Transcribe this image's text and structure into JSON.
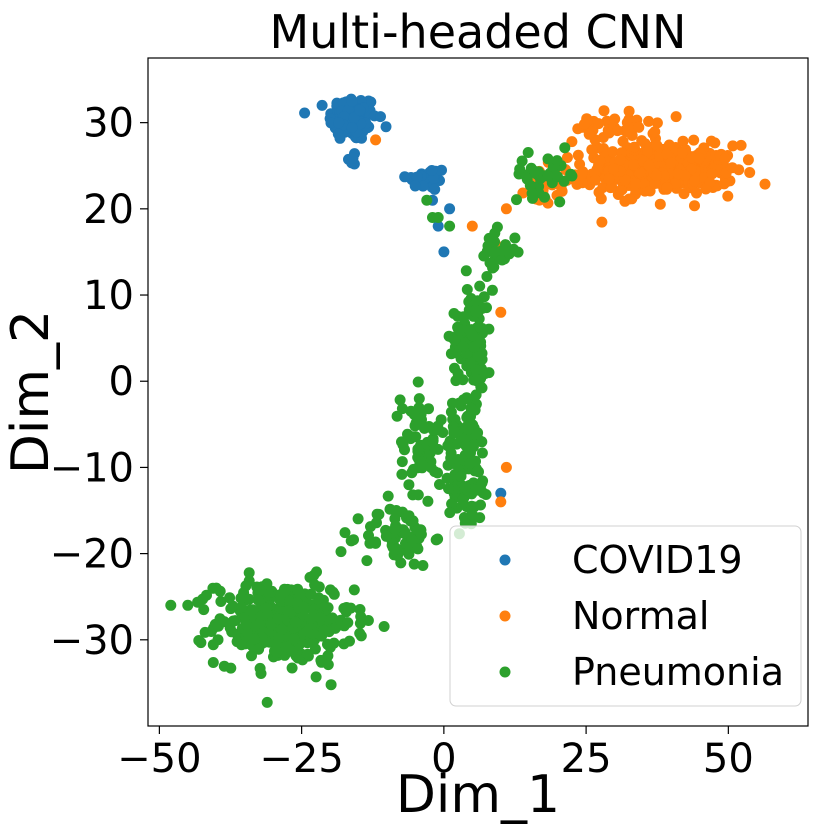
{
  "chart_data": {
    "type": "scatter",
    "title": "Multi-headed CNN",
    "xlabel": "Dim_1",
    "ylabel": "Dim_2",
    "xlim": [
      -52,
      64
    ],
    "ylim": [
      -40,
      37.5
    ],
    "xticks": [
      -50,
      -25,
      0,
      25,
      50
    ],
    "yticks": [
      -30,
      -20,
      -10,
      0,
      10,
      20,
      30
    ],
    "xtick_labels": [
      "−50",
      "−25",
      "0",
      "25",
      "50"
    ],
    "ytick_labels": [
      "−30",
      "−20",
      "−10",
      "0",
      "10",
      "20",
      "30"
    ],
    "legend_position": "bottom-right",
    "series": [
      {
        "name": "COVID19",
        "color": "#1f77b4",
        "clusters": [
          {
            "center": [
              -16,
              30.5
            ],
            "spread": [
              3.5,
              2.2
            ],
            "count": 120
          },
          {
            "center": [
              -3,
              23.5
            ],
            "spread": [
              3.0,
              1.2
            ],
            "count": 28
          },
          {
            "center": [
              -16,
              26
            ],
            "spread": [
              0.8,
              1.0
            ],
            "count": 6
          }
        ],
        "points": [
          [
            -1,
            18
          ],
          [
            0,
            15
          ],
          [
            10,
            -13
          ],
          [
            1,
            20
          ],
          [
            -2,
            21
          ]
        ]
      },
      {
        "name": "Normal",
        "color": "#ff7f0e",
        "clusters": [
          {
            "center": [
              38,
              24.5
            ],
            "spread": [
              11,
              2.4
            ],
            "count": 380
          },
          {
            "center": [
              30,
              29.5
            ],
            "spread": [
              6,
              1.5
            ],
            "count": 40
          },
          {
            "center": [
              18,
              23
            ],
            "spread": [
              3,
              2
            ],
            "count": 30
          }
        ],
        "points": [
          [
            11,
            20
          ],
          [
            9,
            16
          ],
          [
            10,
            8
          ],
          [
            6,
            5
          ],
          [
            10,
            -14
          ],
          [
            11,
            -10
          ],
          [
            -12,
            28
          ],
          [
            5,
            18
          ]
        ]
      },
      {
        "name": "Pneumonia",
        "color": "#2ca02c",
        "clusters": [
          {
            "center": [
              -28,
              -28
            ],
            "spread": [
              10,
              4
            ],
            "count": 330
          },
          {
            "center": [
              -8,
              -18
            ],
            "spread": [
              5,
              3
            ],
            "count": 70
          },
          {
            "center": [
              4,
              -10
            ],
            "spread": [
              3.5,
              6
            ],
            "count": 110
          },
          {
            "center": [
              5,
              5
            ],
            "spread": [
              3,
              6
            ],
            "count": 110
          },
          {
            "center": [
              -4,
              -7
            ],
            "spread": [
              3,
              5
            ],
            "count": 60
          },
          {
            "center": [
              18,
              24
            ],
            "spread": [
              5,
              2
            ],
            "count": 35
          },
          {
            "center": [
              9,
              15
            ],
            "spread": [
              3,
              2
            ],
            "count": 25
          }
        ],
        "points": [
          [
            -3,
            21
          ],
          [
            -2,
            19
          ],
          [
            -1,
            19
          ],
          [
            1,
            18
          ],
          [
            -45,
            -26
          ],
          [
            -40,
            -24
          ],
          [
            -48,
            -26
          ]
        ]
      }
    ]
  }
}
